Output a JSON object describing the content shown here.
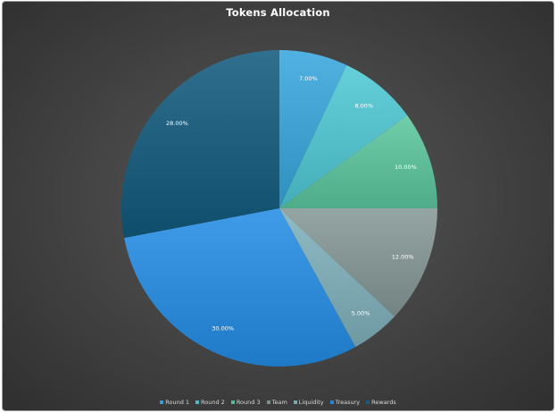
{
  "chart_data": {
    "type": "pie",
    "title": "Tokens Allocation",
    "categories": [
      "Round 1",
      "Round 2",
      "Round 3",
      "Team",
      "Liquidity",
      "Treasury",
      "Rewards"
    ],
    "values": [
      7,
      8,
      10,
      12,
      5,
      30,
      28
    ],
    "data_labels": [
      "7.00%",
      "8.00%",
      "10.00%",
      "12.00%",
      "5.00%",
      "30.00%",
      "28.00%"
    ],
    "colors": [
      "#3b9ccb",
      "#4fb9c4",
      "#5bb894",
      "#7f8f8d",
      "#7aa5ae",
      "#2a86d2",
      "#1a5a78"
    ],
    "start_angle_deg": 0,
    "direction": "clockwise",
    "legend_position": "bottom"
  }
}
